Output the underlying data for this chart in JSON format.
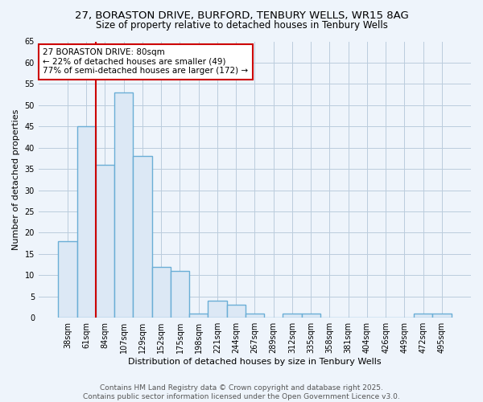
{
  "title": "27, BORASTON DRIVE, BURFORD, TENBURY WELLS, WR15 8AG",
  "subtitle": "Size of property relative to detached houses in Tenbury Wells",
  "xlabel": "Distribution of detached houses by size in Tenbury Wells",
  "ylabel": "Number of detached properties",
  "categories": [
    "38sqm",
    "61sqm",
    "84sqm",
    "107sqm",
    "129sqm",
    "152sqm",
    "175sqm",
    "198sqm",
    "221sqm",
    "244sqm",
    "267sqm",
    "289sqm",
    "312sqm",
    "335sqm",
    "358sqm",
    "381sqm",
    "404sqm",
    "426sqm",
    "449sqm",
    "472sqm",
    "495sqm"
  ],
  "values": [
    18,
    45,
    36,
    53,
    38,
    12,
    11,
    1,
    4,
    3,
    1,
    0,
    1,
    1,
    0,
    0,
    0,
    0,
    0,
    1,
    1
  ],
  "bar_color": "#dce8f5",
  "bar_edge_color": "#6aaed6",
  "bar_linewidth": 1.0,
  "vline_x_index": 2,
  "vline_color": "#cc0000",
  "vline_linewidth": 1.5,
  "annotation_text": "27 BORASTON DRIVE: 80sqm\n← 22% of detached houses are smaller (49)\n77% of semi-detached houses are larger (172) →",
  "annotation_box_color": "white",
  "annotation_box_edge_color": "#cc0000",
  "ylim": [
    0,
    65
  ],
  "yticks": [
    0,
    5,
    10,
    15,
    20,
    25,
    30,
    35,
    40,
    45,
    50,
    55,
    60,
    65
  ],
  "grid_color": "#bbccdd",
  "background_color": "#eef4fb",
  "plot_bg_color": "#eef4fb",
  "footer_line1": "Contains HM Land Registry data © Crown copyright and database right 2025.",
  "footer_line2": "Contains public sector information licensed under the Open Government Licence v3.0.",
  "title_fontsize": 9.5,
  "subtitle_fontsize": 8.5,
  "tick_fontsize": 7,
  "label_fontsize": 8,
  "annotation_fontsize": 7.5,
  "footer_fontsize": 6.5
}
